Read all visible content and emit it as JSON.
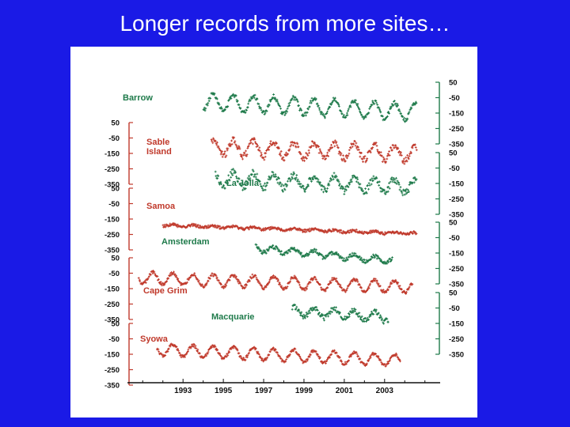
{
  "slide": {
    "title": "Longer records from more sites…"
  },
  "chart_data": {
    "type": "scatter",
    "title": "",
    "x_ticks": [
      "1993",
      "1995",
      "1997",
      "1999",
      "2001",
      "2003"
    ],
    "y_ticks": [
      "50",
      "-50",
      "-150",
      "-250",
      "-350"
    ],
    "series": [
      {
        "name": "Barrow",
        "color": "#1e7a4a",
        "axis": "right",
        "start": 1994.0,
        "end": 2004.6,
        "baseline": -75,
        "trend": -70,
        "amplitude": 55,
        "noise": 14
      },
      {
        "name": "Sable Island",
        "color": "#c0392b",
        "axis": "left",
        "start": 1994.4,
        "end": 2004.6,
        "baseline": -110,
        "trend": -40,
        "amplitude": 50,
        "noise": 22
      },
      {
        "name": "La Jolla",
        "color": "#1e7a4a",
        "axis": "right",
        "start": 1994.6,
        "end": 2004.6,
        "baseline": -120,
        "trend": -50,
        "amplitude": 45,
        "noise": 24
      },
      {
        "name": "Samoa",
        "color": "#c0392b",
        "axis": "left",
        "start": 1992.0,
        "end": 2004.6,
        "baseline": -190,
        "trend": -55,
        "amplitude": 6,
        "noise": 9
      },
      {
        "name": "Amsterdam",
        "color": "#1e7a4a",
        "axis": "right",
        "start": 1996.6,
        "end": 2003.4,
        "baseline": -120,
        "trend": -80,
        "amplitude": 20,
        "noise": 12
      },
      {
        "name": "Cape Grim",
        "color": "#c0392b",
        "axis": "left",
        "start": 1990.8,
        "end": 2004.4,
        "baseline": -80,
        "trend": -60,
        "amplitude": 38,
        "noise": 11
      },
      {
        "name": "Macquarie",
        "color": "#1e7a4a",
        "axis": "right",
        "start": 1998.4,
        "end": 2003.2,
        "baseline": -70,
        "trend": -40,
        "amplitude": 30,
        "noise": 18
      },
      {
        "name": "Syowa",
        "color": "#c0392b",
        "axis": "left",
        "start": 1991.7,
        "end": 2003.8,
        "baseline": -120,
        "trend": -70,
        "amplitude": 38,
        "noise": 10
      }
    ]
  }
}
